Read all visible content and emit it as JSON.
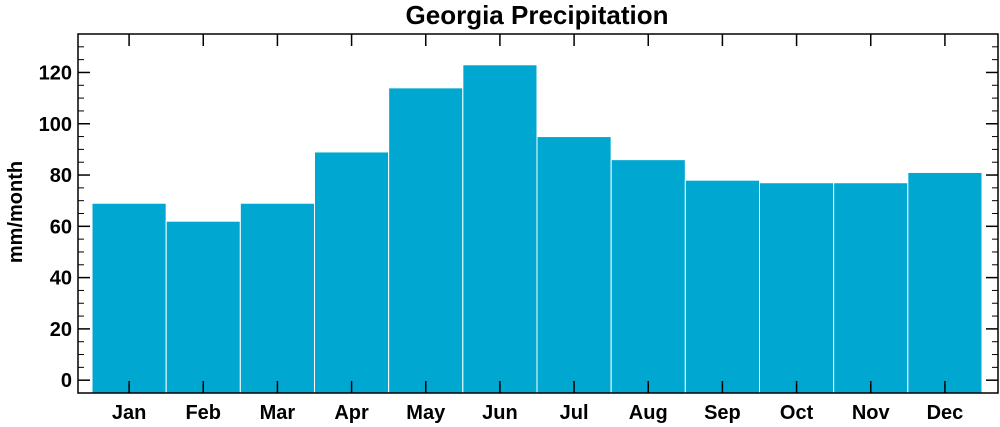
{
  "colors": {
    "bar": "#00a8d1",
    "bar_edge": "#ffffff",
    "axis": "#000000"
  },
  "chart_data": {
    "type": "bar",
    "title": "Georgia Precipitation",
    "xlabel": "",
    "ylabel": "mm/month",
    "categories": [
      "Jan",
      "Feb",
      "Mar",
      "Apr",
      "May",
      "Jun",
      "Jul",
      "Aug",
      "Sep",
      "Oct",
      "Nov",
      "Dec"
    ],
    "values": [
      69,
      62,
      69,
      89,
      114,
      123,
      95,
      86,
      78,
      77,
      77,
      81
    ],
    "ylim": [
      -5,
      135
    ],
    "yticks": [
      0,
      20,
      40,
      60,
      80,
      100,
      120
    ],
    "ytick_labels": [
      "0",
      "20",
      "40",
      "60",
      "80",
      "100",
      "120"
    ],
    "grid": false,
    "legend": "none"
  }
}
